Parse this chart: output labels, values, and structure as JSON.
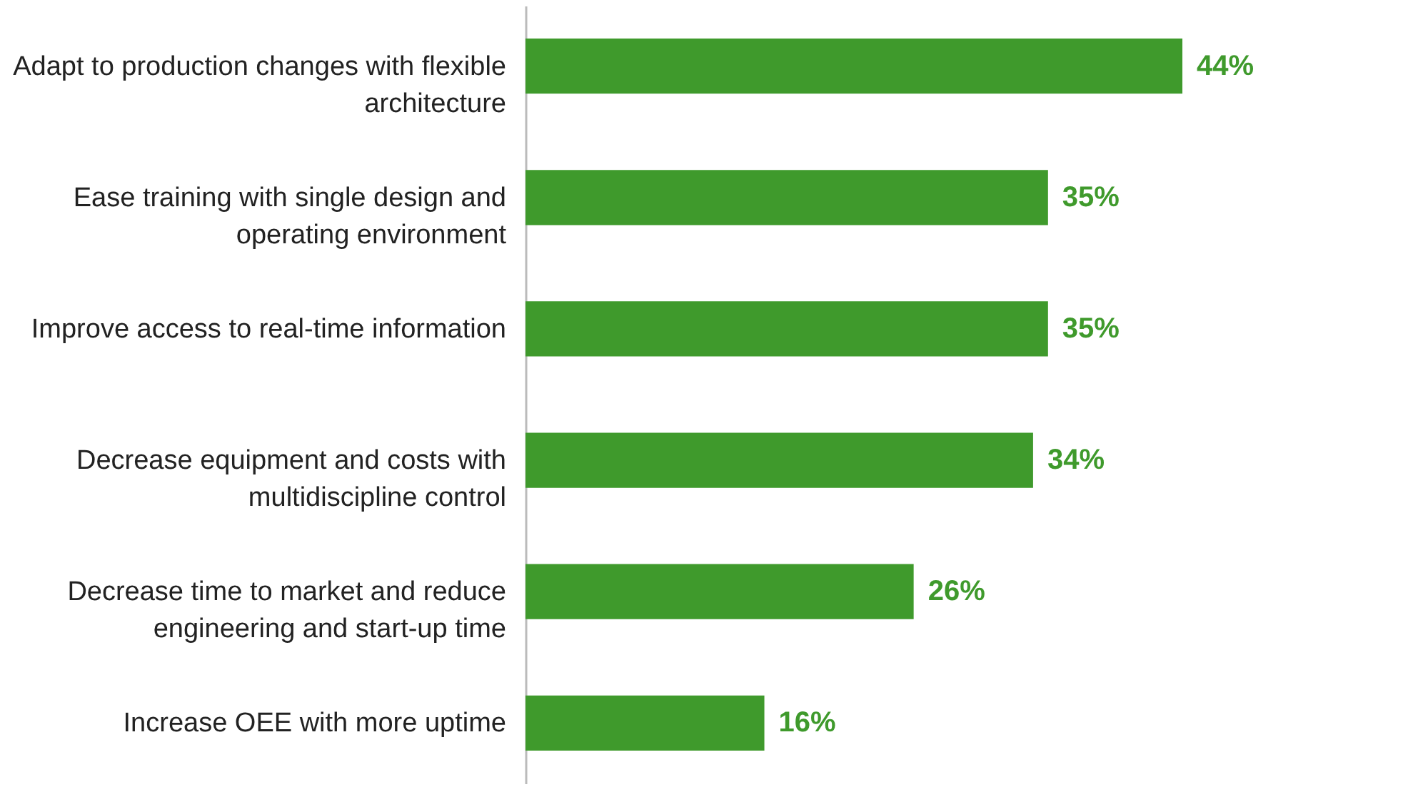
{
  "chart_data": {
    "type": "bar",
    "orientation": "horizontal",
    "categories": [
      "Adapt to production changes with flexible architecture",
      "Ease training with single design and operating environment",
      "Improve access to real-time information",
      "Decrease equipment and costs with multidiscipline control",
      "Decrease time to market and reduce engineering and start-up time",
      "Increase OEE with more uptime"
    ],
    "values": [
      44,
      35,
      35,
      34,
      26,
      16
    ],
    "value_labels": [
      "44%",
      "35%",
      "35%",
      "34%",
      "26%",
      "16%"
    ],
    "color": "#3f9a2c",
    "tick_labels": "y"
  }
}
